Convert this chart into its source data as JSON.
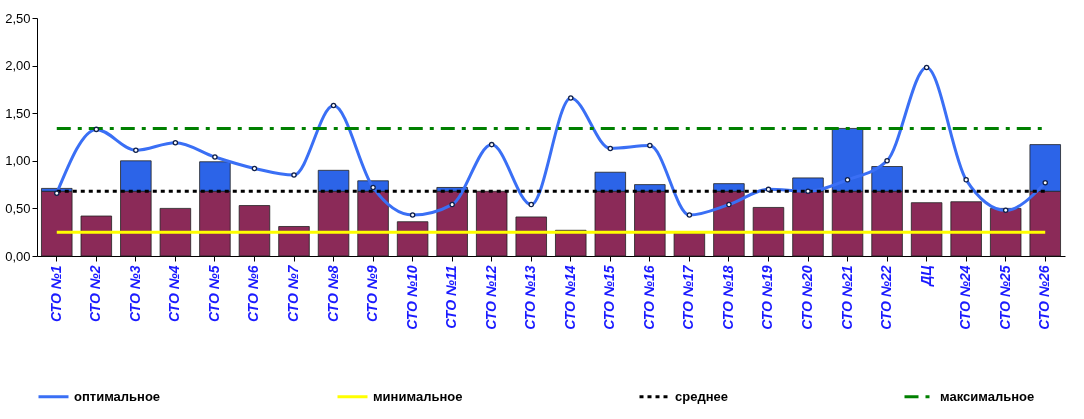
{
  "chart_data": {
    "type": "bar",
    "stacked": true,
    "categories": [
      "СТО №1",
      "СТО №2",
      "СТО №3",
      "СТО №4",
      "СТО №5",
      "СТО №6",
      "СТО №7",
      "СТО №8",
      "СТО №9",
      "СТО №10",
      "СТО №11",
      "СТО №12",
      "СТО №13",
      "СТО №14",
      "СТО №15",
      "СТО №16",
      "СТО №17",
      "СТО №18",
      "СТО №19",
      "СТО №20",
      "СТО №21",
      "СТО №22",
      "ДЦ",
      "СТО №24",
      "СТО №25",
      "СТО №26"
    ],
    "series": [
      {
        "color": "#8b2a58",
        "values": [
          0.68,
          0.42,
          0.68,
          0.5,
          0.68,
          0.53,
          0.31,
          0.68,
          0.68,
          0.36,
          0.68,
          0.68,
          0.41,
          0.27,
          0.68,
          0.68,
          0.24,
          0.68,
          0.51,
          0.68,
          0.68,
          0.68,
          0.56,
          0.57,
          0.5,
          0.68
        ]
      },
      {
        "color": "#2c64e8",
        "values": [
          0.03,
          null,
          0.32,
          null,
          0.31,
          null,
          null,
          0.22,
          0.11,
          null,
          0.04,
          null,
          null,
          null,
          0.2,
          0.07,
          null,
          0.08,
          null,
          0.14,
          0.66,
          0.26,
          null,
          null,
          null,
          0.49
        ]
      },
      {
        "type": "line",
        "name": "оптимальное",
        "color": "#3a6ff5",
        "marker": "circle",
        "line_style": "solid",
        "values": [
          0.66,
          1.33,
          1.11,
          1.19,
          1.04,
          0.92,
          0.85,
          1.58,
          0.72,
          0.43,
          0.54,
          1.17,
          0.54,
          1.66,
          1.13,
          1.16,
          0.43,
          0.54,
          0.7,
          0.68,
          0.8,
          1.0,
          1.98,
          0.8,
          0.48,
          0.77
        ]
      },
      {
        "type": "line",
        "name": "минимальное",
        "color": "#ffff00",
        "marker": "none",
        "line_style": "solid",
        "values": [
          0.25,
          0.25,
          0.25,
          0.25,
          0.25,
          0.25,
          0.25,
          0.25,
          0.25,
          0.25,
          0.25,
          0.25,
          0.25,
          0.25,
          0.25,
          0.25,
          0.25,
          0.25,
          0.25,
          0.25,
          0.25,
          0.25,
          0.25,
          0.25,
          0.25,
          0.25
        ]
      },
      {
        "type": "line",
        "name": "среднее",
        "color": "#000000",
        "marker": "none",
        "line_style": "dotted",
        "values": [
          0.68,
          0.68,
          0.68,
          0.68,
          0.68,
          0.68,
          0.68,
          0.68,
          0.68,
          0.68,
          0.68,
          0.68,
          0.68,
          0.68,
          0.68,
          0.68,
          0.68,
          0.68,
          0.68,
          0.68,
          0.68,
          0.68,
          0.68,
          0.68,
          0.68,
          0.68
        ]
      },
      {
        "type": "line",
        "name": "максимальное",
        "color": "#008000",
        "marker": "none",
        "line_style": "dashed",
        "values": [
          1.34,
          1.34,
          1.34,
          1.34,
          1.34,
          1.34,
          1.34,
          1.34,
          1.34,
          1.34,
          1.34,
          1.34,
          1.34,
          1.34,
          1.34,
          1.34,
          1.34,
          1.34,
          1.34,
          1.34,
          1.34,
          1.34,
          1.34,
          1.34,
          1.34,
          1.34
        ]
      }
    ],
    "ylim": [
      0,
      2.5
    ],
    "yticks": [
      {
        "value": 0,
        "label": "0,00"
      },
      {
        "value": 0.5,
        "label": "0,50"
      },
      {
        "value": 1,
        "label": "1,00"
      },
      {
        "value": 1.5,
        "label": "1,50"
      },
      {
        "value": 2,
        "label": "2,00"
      },
      {
        "value": 2.5,
        "label": "2,50"
      }
    ],
    "grid": false,
    "legend": "bottom"
  }
}
